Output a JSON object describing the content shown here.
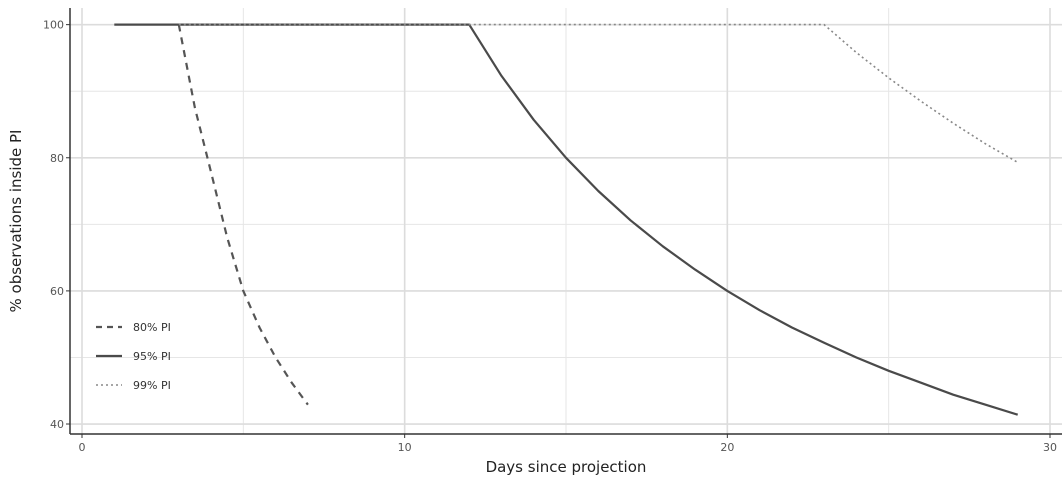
{
  "chart_data": {
    "type": "line",
    "xlabel": "Days since projection",
    "ylabel": "% observations inside PI",
    "xlim": [
      0,
      30
    ],
    "ylim": [
      38.5,
      102.5
    ],
    "x_ticks": [
      0,
      10,
      20,
      30
    ],
    "y_ticks": [
      40,
      60,
      80,
      100
    ],
    "x_minor": [
      5,
      15,
      25
    ],
    "y_minor": [
      50,
      70,
      90
    ],
    "grid": true,
    "legend_position": "bottom-left",
    "series": [
      {
        "name": "80% PI",
        "line_style": "dashed",
        "color": "#555555",
        "x": [
          3,
          3.5,
          4,
          4.5,
          5,
          5.5,
          6,
          6.5,
          7
        ],
        "y": [
          100,
          87.5,
          77.8,
          68,
          60,
          54.5,
          50,
          46.2,
          42.9
        ]
      },
      {
        "name": "95% PI",
        "line_style": "solid",
        "color": "#4a4a4a",
        "x": [
          1,
          12,
          13,
          14,
          15,
          16,
          17,
          18,
          19,
          20,
          21,
          22,
          23,
          24,
          25,
          26,
          27,
          28,
          29
        ],
        "y": [
          100,
          100,
          92.3,
          85.7,
          80,
          75,
          70.6,
          66.7,
          63.2,
          60,
          57.1,
          54.5,
          52.2,
          50,
          48,
          46.2,
          44.4,
          42.9,
          41.4
        ]
      },
      {
        "name": "99% PI",
        "line_style": "dotted",
        "color": "#888888",
        "x": [
          3,
          23,
          24,
          25,
          26,
          27,
          28,
          29
        ],
        "y": [
          100,
          100,
          95.8,
          92,
          88.5,
          85.2,
          82.1,
          79.3
        ]
      }
    ]
  }
}
